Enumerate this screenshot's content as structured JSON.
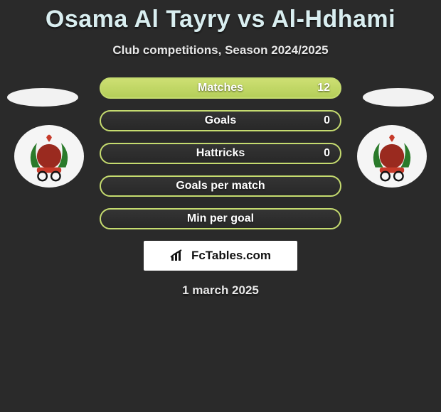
{
  "header": {
    "title": "Osama Al Tayry vs Al-Hdhami",
    "subtitle": "Club competitions, Season 2024/2025"
  },
  "stats": [
    {
      "label": "Matches",
      "value": "12",
      "filled": true
    },
    {
      "label": "Goals",
      "value": "0",
      "filled": false
    },
    {
      "label": "Hattricks",
      "value": "0",
      "filled": false
    },
    {
      "label": "Goals per match",
      "value": "",
      "filled": false
    },
    {
      "label": "Min per goal",
      "value": "",
      "filled": false
    }
  ],
  "style": {
    "pill_border_color": "#c5db6f",
    "pill_fill_gradient": [
      "#cddf72",
      "#b5cf5a"
    ],
    "pill_empty_gradient": [
      "#343434",
      "#282828"
    ],
    "pill_width": 340,
    "pill_height": 30,
    "pill_radius": 16,
    "text_color": "#ffffff",
    "background_color": "#2a2a2a",
    "title_color": "#d9eef0",
    "subtitle_color": "#e8e8e8",
    "title_fontsize": 34,
    "subtitle_fontsize": 17,
    "label_fontsize": 16
  },
  "badge": {
    "colors": {
      "wreath": "#2a7a2a",
      "ribbon": "#c63a2a",
      "flame": "#c63a2a",
      "ring_outer": "#111111",
      "ring_inner": "#ffffff",
      "ball": "#9a2a1f"
    }
  },
  "brand": {
    "name": "FcTables.com",
    "bar_color": "#111111"
  },
  "date": "1 march 2025"
}
